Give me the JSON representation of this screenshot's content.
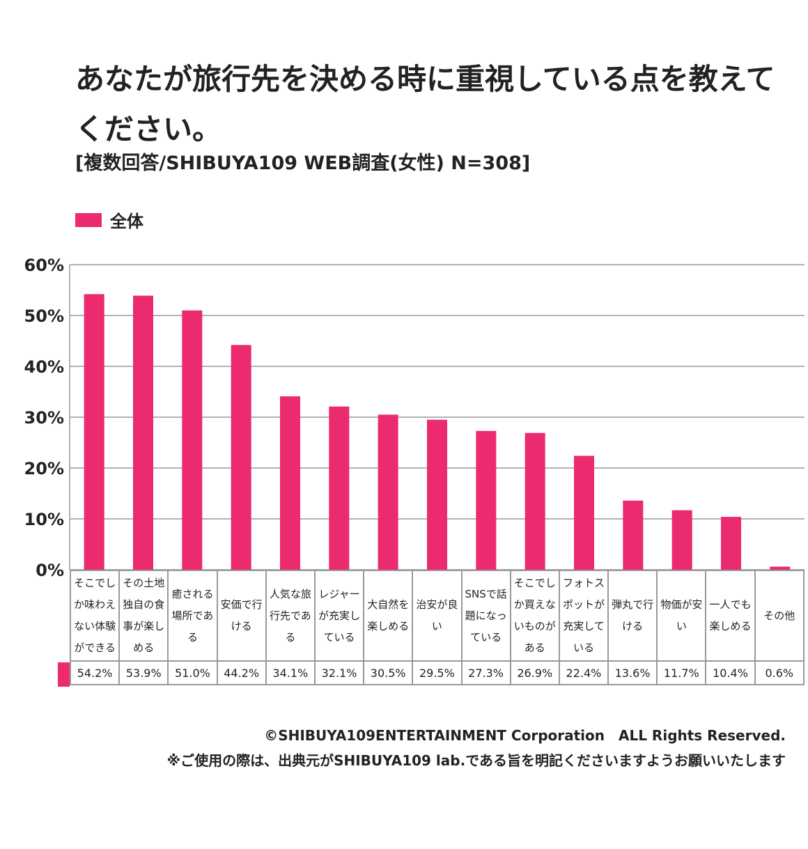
{
  "title": "あなたが旅行先を決める時に重視している点を教えてください。",
  "subtitle": "[複数回答/SHIBUYA109 WEB調査(女性) N=308]",
  "footer": {
    "copyright": "©SHIBUYA109ENTERTAINMENT Corporation　ALL Rights Reserved.",
    "note": "※ご使用の際は、出典元がSHIBUYA109 lab.である旨を明記くださいますようお願いいたします"
  },
  "colors": {
    "bar": "#ec2a6f",
    "grid": "#999999"
  },
  "chart_data": {
    "type": "bar",
    "title": "あなたが旅行先を決める時に重視している点を教えてください。",
    "legend": [
      {
        "name": "全体",
        "color": "#ec2a6f"
      }
    ],
    "legend_position": "top-left",
    "ylim": [
      0,
      60
    ],
    "yticks": [
      "0%",
      "10%",
      "20%",
      "30%",
      "40%",
      "50%",
      "60%"
    ],
    "grid": true,
    "categories": [
      "そこでしか味わえない体験ができる",
      "その土地独自の食事が楽しめる",
      "癒される場所である",
      "安価で行ける",
      "人気な旅行先である",
      "レジャーが充実している",
      "大自然を楽しめる",
      "治安が良い",
      "SNSで話題になっている",
      "そこでしか買えないものがある",
      "フォトスポットが充実している",
      "弾丸で行ける",
      "物価が安い",
      "一人でも楽しめる",
      "その他"
    ],
    "series": [
      {
        "name": "全体",
        "values": [
          54.2,
          53.9,
          51.0,
          44.2,
          34.1,
          32.1,
          30.5,
          29.5,
          27.3,
          26.9,
          22.4,
          13.6,
          11.7,
          10.4,
          0.6
        ]
      }
    ],
    "value_labels": [
      "54.2%",
      "53.9%",
      "51.0%",
      "44.2%",
      "34.1%",
      "32.1%",
      "30.5%",
      "29.5%",
      "27.3%",
      "26.9%",
      "22.4%",
      "13.6%",
      "11.7%",
      "10.4%",
      "0.6%"
    ]
  }
}
